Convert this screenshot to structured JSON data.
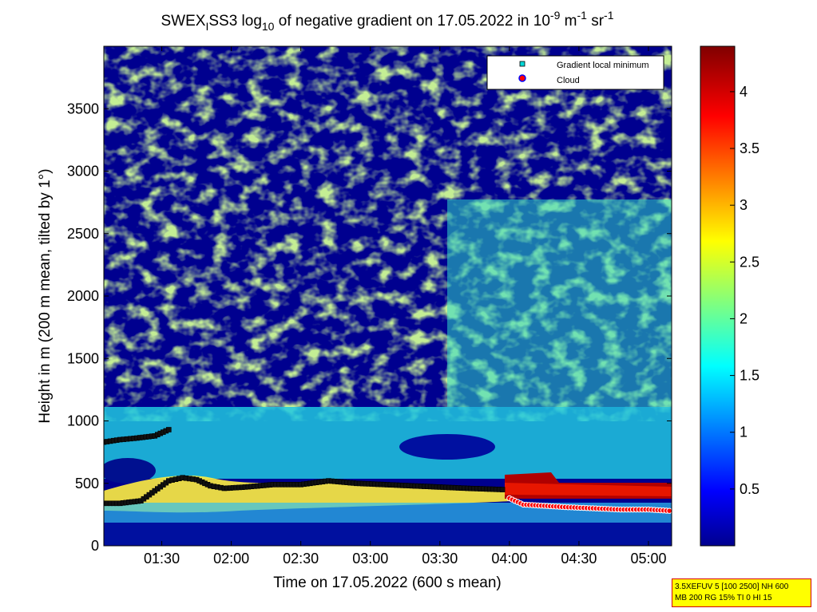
{
  "chart_data": {
    "type": "heatmap",
    "title": {
      "p1": "SWEX",
      "sub1": "I",
      "p2": "SS3 log",
      "sub2": "10",
      "p3": " of negative gradient on 17.05.2022 in 10",
      "sup1": "-9",
      "p4": " m",
      "sup2": "-1",
      "p5": " sr",
      "sup3": "-1"
    },
    "xlabel": "Time on 17.05.2022 (600 s mean)",
    "ylabel": "Height in m (200 m mean, tilted by 1°)",
    "x_range_hours": [
      1.0833,
      5.1667
    ],
    "y_range_m": [
      0,
      4000
    ],
    "x_ticks": [
      {
        "value": 1.5,
        "label": "01:30"
      },
      {
        "value": 2.0,
        "label": "02:00"
      },
      {
        "value": 2.5,
        "label": "02:30"
      },
      {
        "value": 3.0,
        "label": "03:00"
      },
      {
        "value": 3.5,
        "label": "03:30"
      },
      {
        "value": 4.0,
        "label": "04:00"
      },
      {
        "value": 4.5,
        "label": "04:30"
      },
      {
        "value": 5.0,
        "label": "05:00"
      }
    ],
    "y_ticks": [
      {
        "value": 0,
        "label": "0"
      },
      {
        "value": 500,
        "label": "500"
      },
      {
        "value": 1000,
        "label": "1000"
      },
      {
        "value": 1500,
        "label": "1500"
      },
      {
        "value": 2000,
        "label": "2000"
      },
      {
        "value": 2500,
        "label": "2500"
      },
      {
        "value": 3000,
        "label": "3000"
      },
      {
        "value": 3500,
        "label": "3500"
      }
    ],
    "colorbar": {
      "range": [
        0,
        4.4
      ],
      "ticks": [
        {
          "value": 0.5,
          "label": "0.5"
        },
        {
          "value": 1.0,
          "label": "1"
        },
        {
          "value": 1.5,
          "label": "1.5"
        },
        {
          "value": 2.0,
          "label": "2"
        },
        {
          "value": 2.5,
          "label": "2.5"
        },
        {
          "value": 3.0,
          "label": "3"
        },
        {
          "value": 3.5,
          "label": "3.5"
        },
        {
          "value": 4.0,
          "label": "4"
        }
      ],
      "colormap": "jet"
    },
    "legend": {
      "placement": "top-right",
      "entries": [
        {
          "label": "Gradient local minimum",
          "marker": "square",
          "color": "#00d8d8"
        },
        {
          "label": "Cloud",
          "marker": "circle",
          "color": "#ff0000",
          "edge": "#0000ff"
        }
      ]
    },
    "series": [
      {
        "name": "Gradient local minimum",
        "x": [
          1.083,
          1.2,
          1.35,
          1.45,
          1.55,
          1.65,
          1.75,
          1.85,
          1.95,
          2.1,
          2.3,
          2.5,
          2.7,
          2.9,
          3.1,
          3.3,
          3.5,
          3.7,
          3.95
        ],
        "y": [
          340,
          340,
          360,
          440,
          520,
          545,
          530,
          480,
          460,
          470,
          490,
          490,
          520,
          500,
          490,
          480,
          470,
          460,
          450
        ]
      },
      {
        "name": "Gradient local minimum",
        "x": [
          1.083,
          1.2,
          1.3,
          1.45,
          1.55
        ],
        "y": [
          830,
          850,
          860,
          880,
          930
        ]
      },
      {
        "name": "Cloud",
        "x": [
          4.0,
          4.1,
          4.25,
          4.4,
          4.6,
          4.8,
          5.0,
          5.15
        ],
        "y": [
          380,
          330,
          320,
          310,
          300,
          290,
          290,
          280
        ]
      }
    ]
  },
  "info_box": {
    "line1": "3.5XEFUV 5 [100 2500] NH 600",
    "line2": "MB 200 RG 15% TI 0 HI 15"
  }
}
